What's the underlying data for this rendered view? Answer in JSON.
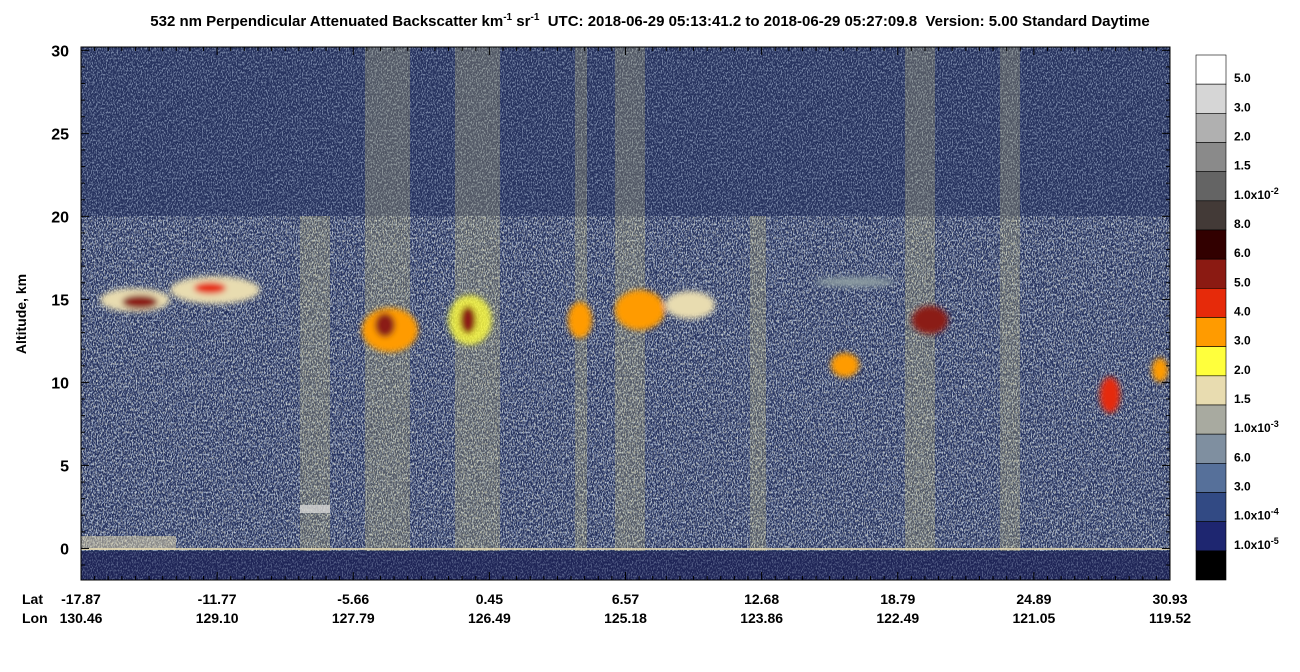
{
  "chart_data": {
    "type": "curtain",
    "title": [
      "532 nm Perpendicular Attenuated Backscatter km",
      "-1",
      " sr",
      "-1",
      "  UTC: 2018-06-29 05:13:41.2 to 2018-06-29 05:27:09.8  Version: 5.00 Standard Daytime"
    ],
    "ylabel": "Altitude, km",
    "ylim": [
      -1.9,
      30.2
    ],
    "yticks": [
      0,
      5,
      10,
      15,
      20,
      25,
      30
    ],
    "row_headers": [
      "Lat",
      "Lon"
    ],
    "lat": [
      "-17.87",
      "-11.77",
      "-5.66",
      "0.45",
      "6.57",
      "12.68",
      "18.79",
      "24.89",
      "30.93"
    ],
    "lon": [
      "130.46",
      "129.10",
      "127.79",
      "126.49",
      "125.18",
      "123.86",
      "122.49",
      "121.05",
      "119.52"
    ],
    "colorbar": {
      "colors": [
        "#ffffff",
        "#d6d6d6",
        "#b0b0b0",
        "#8a8a8a",
        "#646464",
        "#433a37",
        "#320000",
        "#8b1a12",
        "#e62a0a",
        "#ff9b00",
        "#ffff3c",
        "#e8dcb0",
        "#a8aaa0",
        "#7f8fa0",
        "#56709a",
        "#324a84",
        "#1e2670",
        "#000000"
      ],
      "labels": [
        "5.0",
        "3.0",
        "2.0",
        "1.5",
        {
          "text": "1.0x10",
          "sup": "-2"
        },
        "8.0",
        "6.0",
        "5.0",
        "4.0",
        "3.0",
        "2.0",
        "1.5",
        {
          "text": "1.0x10",
          "sup": "-3"
        },
        "6.0",
        "3.0",
        {
          "text": "1.0x10",
          "sup": "-4"
        },
        {
          "text": "1.0x10",
          "sup": "-5"
        }
      ]
    }
  }
}
